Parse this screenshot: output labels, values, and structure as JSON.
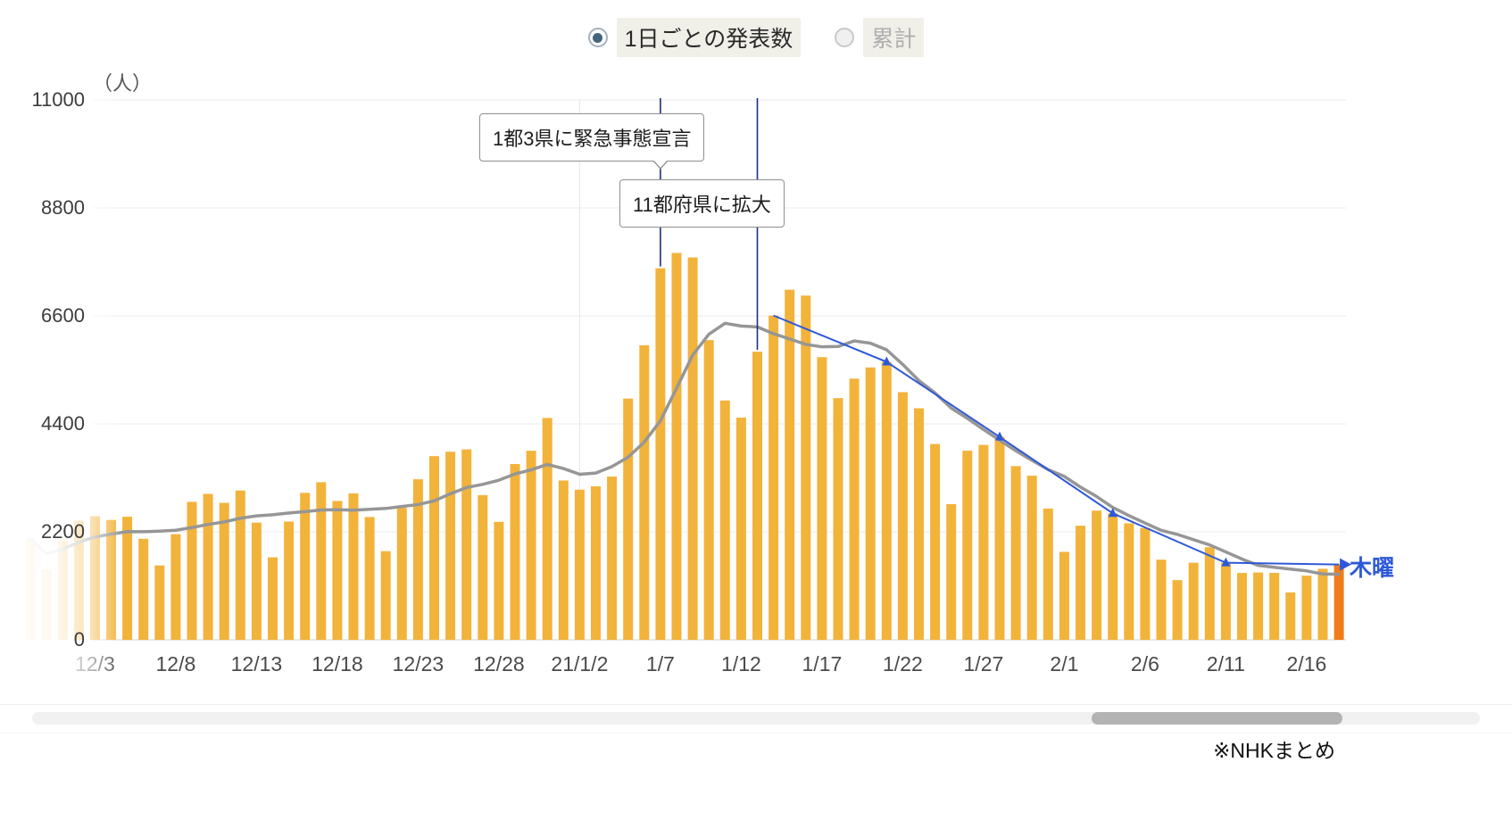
{
  "controls": {
    "daily_label": "1日ごとの発表数",
    "cumulative_label": "累計",
    "selected": "daily"
  },
  "footer": {
    "note": "※NHKまとめ"
  },
  "colors": {
    "bar": "#f2b33b",
    "bar_highlight": "#f07d1a",
    "avg_line": "#969696",
    "thursday_line": "#2d59d8",
    "annotation_line": "#1b2d80",
    "grid_line": "#ebebf1",
    "axis_line": "#cfcfcf",
    "year_divider": "#e6e6ec",
    "radio_selected_dot": "#44667c",
    "x_label": "#4a4a4a",
    "y_label": "#3d3d3d"
  },
  "chart_data": {
    "type": "bar",
    "y_axis_unit": "（人）",
    "ylim": [
      0,
      11000
    ],
    "yticks": [
      0,
      2200,
      4400,
      6600,
      8800,
      11000
    ],
    "grid": true,
    "last_bar_highlighted": true,
    "moving_average_window": 7,
    "year_divider_index": 34,
    "dates": [
      "11/29",
      "11/30",
      "12/1",
      "12/2",
      "12/3",
      "12/4",
      "12/5",
      "12/6",
      "12/7",
      "12/8",
      "12/9",
      "12/10",
      "12/11",
      "12/12",
      "12/13",
      "12/14",
      "12/15",
      "12/16",
      "12/17",
      "12/18",
      "12/19",
      "12/20",
      "12/21",
      "12/22",
      "12/23",
      "12/24",
      "12/25",
      "12/26",
      "12/27",
      "12/28",
      "12/29",
      "12/30",
      "12/31",
      "1/1",
      "1/2",
      "1/3",
      "1/4",
      "1/5",
      "1/6",
      "1/7",
      "1/8",
      "1/9",
      "1/10",
      "1/11",
      "1/12",
      "1/13",
      "1/14",
      "1/15",
      "1/16",
      "1/17",
      "1/18",
      "1/19",
      "1/20",
      "1/21",
      "1/22",
      "1/23",
      "1/24",
      "1/25",
      "1/26",
      "1/27",
      "1/28",
      "1/29",
      "1/30",
      "1/31",
      "2/1",
      "2/2",
      "2/3",
      "2/4",
      "2/5",
      "2/6",
      "2/7",
      "2/8",
      "2/9",
      "2/10",
      "2/11",
      "2/12",
      "2/13",
      "2/14",
      "2/15",
      "2/16",
      "2/17",
      "2/18"
    ],
    "values": [
      2066,
      1438,
      2030,
      2426,
      2518,
      2442,
      2508,
      2058,
      1515,
      2152,
      2811,
      2973,
      2790,
      3041,
      2388,
      1680,
      2410,
      2994,
      3211,
      2829,
      2982,
      2502,
      1806,
      2688,
      3271,
      3742,
      3832,
      3881,
      2948,
      2403,
      3581,
      3852,
      4520,
      3246,
      3059,
      3127,
      3325,
      4915,
      6001,
      7570,
      7882,
      7790,
      6106,
      4876,
      4527,
      5870,
      6607,
      7133,
      7014,
      5759,
      4925,
      5321,
      5549,
      5663,
      5045,
      4717,
      3990,
      2764,
      3853,
      3971,
      4133,
      3539,
      3344,
      2674,
      1792,
      2324,
      2632,
      2577,
      2372,
      2279,
      1632,
      1216,
      1570,
      1887,
      1570,
      1362,
      1371,
      1364,
      965,
      1307,
      1448,
      1534
    ],
    "xticks": [
      {
        "label": "12/3",
        "index": 4
      },
      {
        "label": "12/8",
        "index": 9
      },
      {
        "label": "12/13",
        "index": 14
      },
      {
        "label": "12/18",
        "index": 19
      },
      {
        "label": "12/23",
        "index": 24
      },
      {
        "label": "12/28",
        "index": 29
      },
      {
        "label": "21/1/2",
        "index": 34
      },
      {
        "label": "1/7",
        "index": 39
      },
      {
        "label": "1/12",
        "index": 44
      },
      {
        "label": "1/17",
        "index": 49
      },
      {
        "label": "1/22",
        "index": 54
      },
      {
        "label": "1/27",
        "index": 59
      },
      {
        "label": "2/1",
        "index": 64
      },
      {
        "label": "2/6",
        "index": 69
      },
      {
        "label": "2/11",
        "index": 74
      },
      {
        "label": "2/16",
        "index": 79
      }
    ],
    "thursday_series": {
      "label": "木曜",
      "dates": [
        "1/14",
        "1/21",
        "1/28",
        "2/4",
        "2/11",
        "2/18"
      ],
      "indices": [
        46,
        53,
        60,
        67,
        74,
        81
      ],
      "values": [
        6607,
        5663,
        4133,
        2577,
        1570,
        1534
      ]
    },
    "annotations": [
      {
        "text": "1都3県に緊急事態宣言",
        "date": "1/7",
        "index": 39
      },
      {
        "text": "11都府県に拡大",
        "date": "1/13",
        "index": 45
      }
    ]
  }
}
